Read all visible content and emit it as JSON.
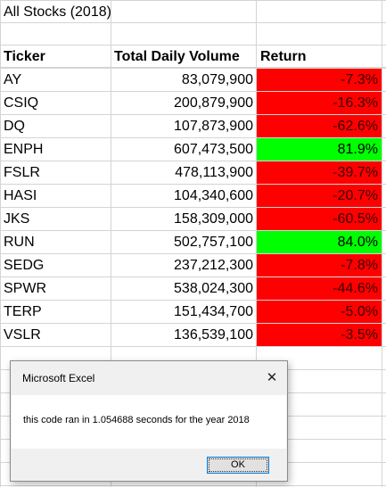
{
  "sheet": {
    "title": "All Stocks (2018)",
    "headers": [
      "Ticker",
      "Total Daily Volume",
      "Return"
    ],
    "rows": [
      {
        "ticker": "AY",
        "volume": "83,079,900",
        "ret": "-7.3%",
        "status": "negative"
      },
      {
        "ticker": "CSIQ",
        "volume": "200,879,900",
        "ret": "-16.3%",
        "status": "negative"
      },
      {
        "ticker": "DQ",
        "volume": "107,873,900",
        "ret": "-62.6%",
        "status": "negative"
      },
      {
        "ticker": "ENPH",
        "volume": "607,473,500",
        "ret": "81.9%",
        "status": "positive"
      },
      {
        "ticker": "FSLR",
        "volume": "478,113,900",
        "ret": "-39.7%",
        "status": "negative"
      },
      {
        "ticker": "HASI",
        "volume": "104,340,600",
        "ret": "-20.7%",
        "status": "negative"
      },
      {
        "ticker": "JKS",
        "volume": "158,309,000",
        "ret": "-60.5%",
        "status": "negative"
      },
      {
        "ticker": "RUN",
        "volume": "502,757,100",
        "ret": "84.0%",
        "status": "positive"
      },
      {
        "ticker": "SEDG",
        "volume": "237,212,300",
        "ret": "-7.8%",
        "status": "negative"
      },
      {
        "ticker": "SPWR",
        "volume": "538,024,300",
        "ret": "-44.6%",
        "status": "negative"
      },
      {
        "ticker": "TERP",
        "volume": "151,434,700",
        "ret": "-5.0%",
        "status": "negative"
      },
      {
        "ticker": "VSLR",
        "volume": "136,539,100",
        "ret": "-3.5%",
        "status": "negative"
      }
    ],
    "colors": {
      "negative": "#ff0000",
      "positive": "#00ff00",
      "gridline": "#d4d4d4"
    }
  },
  "dialog": {
    "title": "Microsoft Excel",
    "message": "this code ran in 1.054688 seconds for the year 2018",
    "ok_label": "OK",
    "close_glyph": "✕",
    "close_icon": "close-icon"
  }
}
